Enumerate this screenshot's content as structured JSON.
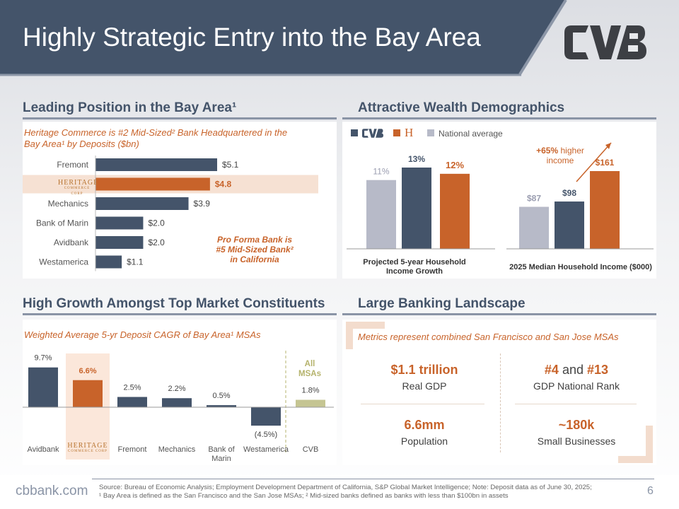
{
  "title": "Highly Strategic Entry into the Bay Area",
  "logo": {
    "text": "CVB",
    "color": "#3d3f44"
  },
  "colors": {
    "navy": "#44546a",
    "orange": "#c8632a",
    "gray": "#b7bac8",
    "olive": "#c5c592"
  },
  "leading": {
    "title": "Leading Position in the Bay Area¹",
    "note": "Heritage Commerce is #2 Mid-Sized² Bank Headquartered in the Bay Area¹ by Deposits ($bn)",
    "callout": "Pro Forma Bank is #5 Mid-Sized Bank² in California",
    "heritage_logo": {
      "line1": "HERITAGE",
      "line2": "COMMERCE CORP"
    }
  },
  "wealth": {
    "title": "Attractive Wealth Demographics",
    "legend": {
      "national": "National average",
      "cvb_icon": "cvb-logo",
      "heritage_icon": "heritage-h"
    },
    "growth_label": "Projected 5-year Household Income Growth",
    "income_label": "2025 Median Household Income ($000)",
    "annotation_pct": "+65%",
    "annotation_text": "higher income"
  },
  "growth": {
    "title": "High Growth Amongst Top Market Constituents",
    "note": "Weighted Average 5-yr Deposit CAGR of Bay Area¹ MSAs",
    "all_msas": "All MSAs"
  },
  "landscape": {
    "title": "Large Banking Landscape",
    "note": "Metrics represent combined San Francisco and San Jose MSAs",
    "metrics": [
      {
        "value": "$1.1 trillion",
        "label": "Real GDP"
      },
      {
        "value_a": "#4",
        "value_and": "and",
        "value_b": "#13",
        "label": "GDP National Rank"
      },
      {
        "value": "6.6mm",
        "label": "Population"
      },
      {
        "value": "~180k",
        "label": "Small Businesses"
      }
    ]
  },
  "chart_data": [
    {
      "type": "bar",
      "orientation": "horizontal",
      "title": "Heritage Commerce is #2 Mid-Sized² Bank Headquartered in the Bay Area¹ by Deposits ($bn)",
      "categories": [
        "Fremont",
        "Heritage Commerce Corp",
        "Mechanics",
        "Bank of Marin",
        "Avidbank",
        "Westamerica"
      ],
      "category_labels": [
        "Fremont",
        "",
        "Mechanics",
        "Bank of Marin",
        "Avidbank",
        "Westamerica"
      ],
      "values": [
        5.1,
        4.8,
        3.9,
        2.0,
        2.0,
        1.1
      ],
      "value_labels": [
        "$5.1",
        "$4.8",
        "$3.9",
        "$2.0",
        "$2.0",
        "$1.1"
      ],
      "highlight_index": 1,
      "xlim": [
        0,
        5.1
      ]
    },
    {
      "type": "bar",
      "title": "Projected 5-year Household Income Growth",
      "series": [
        {
          "name": "National average",
          "values": [
            11
          ]
        },
        {
          "name": "CVB",
          "values": [
            13
          ]
        },
        {
          "name": "Heritage",
          "values": [
            12
          ]
        }
      ],
      "value_labels": [
        "11%",
        "13%",
        "12%"
      ],
      "ylim": [
        0,
        13
      ]
    },
    {
      "type": "bar",
      "title": "2025 Median Household Income ($000)",
      "series": [
        {
          "name": "National average",
          "values": [
            87
          ]
        },
        {
          "name": "CVB",
          "values": [
            98
          ]
        },
        {
          "name": "Heritage",
          "values": [
            161
          ]
        }
      ],
      "value_labels": [
        "$87",
        "$98",
        "$161"
      ],
      "ylim": [
        0,
        161
      ]
    },
    {
      "type": "bar",
      "title": "Weighted Average 5-yr Deposit CAGR of Bay Area¹ MSAs",
      "categories": [
        "Avidbank",
        "Heritage Commerce Corp",
        "Fremont",
        "Mechanics",
        "Bank of Marin",
        "Westamerica",
        "CVB"
      ],
      "category_labels": [
        "Avidbank",
        "",
        "Fremont",
        "Mechanics",
        "Bank of Marin",
        "Westamerica",
        "CVB"
      ],
      "values": [
        9.7,
        6.6,
        2.5,
        2.2,
        0.5,
        -4.5,
        1.8
      ],
      "value_labels": [
        "9.7%",
        "6.6%",
        "2.5%",
        "2.2%",
        "0.5%",
        "(4.5%)",
        "1.8%"
      ],
      "highlight_index": 1,
      "ylim": [
        -4.5,
        9.7
      ]
    }
  ],
  "footer": {
    "url": "cbbank.com",
    "source": "Source: Bureau of Economic Analysis; Employment Development Department of California, S&P Global Market Intelligence; Note: Deposit data as of June 30, 2025;",
    "footnote": "¹ Bay Area is defined as the San Francisco and the San Jose MSAs; ² Mid-sized banks defined as banks with less than $100bn in assets",
    "page": "6"
  }
}
